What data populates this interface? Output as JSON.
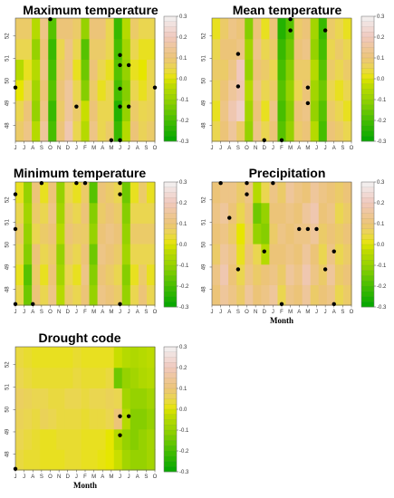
{
  "chart_data": [
    {
      "type": "heatmap",
      "title": "Maximum temperature",
      "xlabel": "",
      "x_ticks": [
        "J",
        "J",
        "A",
        "S",
        "O",
        "N",
        "D",
        "J",
        "F",
        "M",
        "A",
        "M",
        "J",
        "J",
        "A",
        "S",
        "O"
      ],
      "y_ticks": [
        "48",
        "49",
        "50",
        "51",
        "52"
      ],
      "ylim": [
        47.3,
        52.8
      ],
      "colorbar": {
        "ticks": [
          "0.3",
          "0.2",
          "0.1",
          "0.0",
          "-0.1",
          "-0.2",
          "-0.3"
        ],
        "range": [
          -0.3,
          0.3
        ]
      },
      "values": [
        [
          0.08,
          0.12,
          -0.05,
          0.15,
          -0.2,
          0.1,
          0.18,
          0.05,
          -0.05,
          0.12,
          0.05,
          0.08,
          -0.22,
          -0.05,
          0.1,
          0.06,
          0.08
        ],
        [
          0.05,
          0.1,
          -0.1,
          0.12,
          -0.22,
          0.08,
          0.15,
          0.08,
          -0.02,
          0.1,
          0.05,
          0.05,
          -0.25,
          -0.1,
          0.08,
          0.05,
          0.06
        ],
        [
          0.0,
          0.05,
          -0.08,
          0.1,
          -0.18,
          0.1,
          0.15,
          0.05,
          -0.12,
          0.08,
          0.02,
          0.05,
          -0.2,
          -0.12,
          0.05,
          0.02,
          0.05
        ],
        [
          -0.05,
          0.02,
          -0.05,
          0.12,
          -0.2,
          0.08,
          0.12,
          0.02,
          -0.15,
          0.1,
          0.05,
          0.02,
          -0.18,
          -0.1,
          0.02,
          0.0,
          0.05
        ],
        [
          0.05,
          0.05,
          -0.1,
          0.1,
          -0.22,
          0.05,
          0.12,
          0.05,
          -0.18,
          0.08,
          0.08,
          0.05,
          -0.2,
          -0.08,
          0.05,
          0.02,
          0.02
        ],
        [
          0.08,
          0.08,
          -0.05,
          0.12,
          -0.18,
          0.1,
          0.1,
          0.08,
          -0.1,
          0.1,
          0.1,
          0.05,
          -0.22,
          -0.05,
          0.08,
          0.05,
          0.05
        ]
      ],
      "points": [
        [
          4,
          52.75
        ],
        [
          12,
          51.15
        ],
        [
          12,
          50.7
        ],
        [
          13,
          50.7
        ],
        [
          0,
          49.7
        ],
        [
          12,
          49.65
        ],
        [
          16,
          49.7
        ],
        [
          7,
          48.85
        ],
        [
          12,
          48.85
        ],
        [
          13,
          48.85
        ],
        [
          11,
          47.35
        ],
        [
          12,
          47.35
        ]
      ]
    },
    {
      "type": "heatmap",
      "title": "Mean temperature",
      "xlabel": "",
      "x_ticks": [
        "J",
        "J",
        "A",
        "S",
        "O",
        "N",
        "D",
        "J",
        "F",
        "M",
        "A",
        "M",
        "J",
        "J",
        "A",
        "S",
        "O"
      ],
      "y_ticks": [
        "48",
        "49",
        "50",
        "51",
        "52"
      ],
      "ylim": [
        47.3,
        52.8
      ],
      "colorbar": {
        "ticks": [
          "0.3",
          "0.2",
          "0.1",
          "0.0",
          "-0.1",
          "-0.2",
          "-0.3"
        ],
        "range": [
          -0.3,
          0.3
        ]
      },
      "values": [
        [
          0.05,
          0.1,
          0.15,
          0.08,
          -0.1,
          0.12,
          0.05,
          0.1,
          -0.18,
          -0.1,
          0.08,
          0.1,
          -0.05,
          -0.2,
          0.1,
          0.08,
          0.05
        ],
        [
          0.02,
          0.12,
          0.18,
          0.22,
          -0.08,
          0.1,
          0.02,
          0.12,
          -0.2,
          -0.12,
          0.1,
          0.12,
          -0.1,
          -0.18,
          0.08,
          0.05,
          0.02
        ],
        [
          0.05,
          0.1,
          0.15,
          0.18,
          -0.05,
          0.12,
          0.05,
          0.08,
          -0.18,
          -0.1,
          0.05,
          0.1,
          -0.08,
          -0.15,
          0.05,
          0.02,
          0.05
        ],
        [
          0.08,
          0.08,
          0.12,
          0.2,
          -0.1,
          0.1,
          0.08,
          0.05,
          -0.2,
          -0.12,
          0.08,
          0.08,
          -0.05,
          -0.18,
          0.08,
          0.05,
          0.08
        ],
        [
          0.05,
          0.1,
          0.1,
          0.12,
          -0.08,
          0.12,
          0.05,
          0.08,
          -0.22,
          -0.15,
          0.1,
          0.12,
          -0.1,
          -0.2,
          0.05,
          0.08,
          0.05
        ],
        [
          0.02,
          0.08,
          0.12,
          0.1,
          -0.12,
          0.1,
          0.02,
          0.1,
          -0.25,
          -0.18,
          0.08,
          0.1,
          -0.08,
          -0.22,
          0.08,
          0.05,
          0.02
        ]
      ],
      "points": [
        [
          9,
          52.75
        ],
        [
          9,
          52.25
        ],
        [
          13,
          52.25
        ],
        [
          3,
          51.2
        ],
        [
          3,
          49.75
        ],
        [
          11,
          49.7
        ],
        [
          11,
          49.0
        ],
        [
          6,
          47.35
        ],
        [
          8,
          47.35
        ]
      ]
    },
    {
      "type": "heatmap",
      "title": "Minimum temperature",
      "xlabel": "",
      "x_ticks": [
        "J",
        "J",
        "A",
        "S",
        "O",
        "N",
        "D",
        "J",
        "F",
        "M",
        "A",
        "M",
        "J",
        "J",
        "A",
        "S",
        "O"
      ],
      "y_ticks": [
        "48",
        "49",
        "50",
        "51",
        "52"
      ],
      "ylim": [
        47.3,
        52.8
      ],
      "colorbar": {
        "ticks": [
          "0.3",
          "0.2",
          "0.1",
          "0.0",
          "-0.1",
          "-0.2",
          "-0.3"
        ],
        "range": [
          -0.3,
          0.3
        ]
      },
      "values": [
        [
          0.05,
          -0.15,
          0.1,
          0.05,
          0.12,
          -0.05,
          0.08,
          0.05,
          0.1,
          -0.1,
          0.12,
          0.1,
          0.08,
          -0.1,
          0.05,
          0.1,
          0.05
        ],
        [
          0.02,
          -0.18,
          0.08,
          0.02,
          0.1,
          -0.08,
          0.05,
          0.02,
          0.12,
          -0.12,
          0.1,
          0.08,
          0.05,
          -0.12,
          0.02,
          0.08,
          0.02
        ],
        [
          0.05,
          -0.12,
          0.1,
          0.05,
          0.08,
          -0.1,
          0.08,
          0.05,
          0.1,
          -0.15,
          0.12,
          0.1,
          0.08,
          -0.08,
          0.05,
          0.05,
          0.05
        ],
        [
          0.08,
          -0.1,
          0.05,
          0.08,
          0.1,
          -0.05,
          0.1,
          0.08,
          0.08,
          -0.1,
          0.1,
          0.12,
          0.1,
          -0.1,
          0.08,
          0.08,
          0.08
        ],
        [
          0.05,
          -0.08,
          0.08,
          0.05,
          0.12,
          -0.08,
          0.08,
          0.05,
          0.1,
          -0.12,
          0.08,
          0.1,
          0.08,
          -0.12,
          0.05,
          0.05,
          0.05
        ],
        [
          0.02,
          -0.1,
          0.1,
          0.02,
          0.1,
          -0.1,
          0.05,
          0.02,
          0.08,
          -0.18,
          0.1,
          0.08,
          0.05,
          -0.15,
          0.02,
          0.08,
          0.02
        ]
      ],
      "points": [
        [
          0,
          52.25
        ],
        [
          0,
          50.7
        ],
        [
          3,
          52.75
        ],
        [
          7,
          52.75
        ],
        [
          8,
          52.75
        ],
        [
          12,
          52.75
        ],
        [
          12,
          52.25
        ],
        [
          0,
          47.35
        ],
        [
          2,
          47.35
        ],
        [
          12,
          47.35
        ]
      ]
    },
    {
      "type": "heatmap",
      "title": "Precipitation",
      "xlabel": "Month",
      "x_ticks": [
        "J",
        "J",
        "A",
        "S",
        "O",
        "N",
        "D",
        "J",
        "F",
        "M",
        "A",
        "M",
        "J",
        "J",
        "A",
        "S",
        "O"
      ],
      "y_ticks": [
        "48",
        "49",
        "50",
        "51",
        "52"
      ],
      "ylim": [
        47.3,
        52.8
      ],
      "colorbar": {
        "ticks": [
          "0.3",
          "0.2",
          "0.1",
          "0.0",
          "-0.1",
          "-0.2",
          "-0.3"
        ],
        "range": [
          -0.3,
          0.3
        ]
      },
      "values": [
        [
          0.1,
          0.15,
          0.12,
          0.08,
          0.15,
          0.1,
          0.12,
          0.15,
          0.05,
          0.12,
          0.1,
          0.15,
          0.08,
          0.1,
          0.12,
          0.05,
          0.08
        ],
        [
          0.12,
          0.18,
          0.1,
          0.05,
          0.12,
          0.08,
          0.1,
          0.12,
          0.08,
          0.15,
          0.12,
          0.18,
          0.12,
          0.08,
          0.15,
          0.08,
          0.1
        ],
        [
          0.08,
          0.15,
          0.12,
          0.02,
          0.1,
          0.05,
          -0.05,
          0.1,
          0.1,
          0.12,
          0.1,
          0.15,
          0.1,
          0.05,
          0.12,
          0.05,
          0.08
        ],
        [
          0.1,
          0.12,
          0.08,
          0.0,
          0.08,
          -0.1,
          -0.12,
          0.08,
          0.12,
          0.1,
          0.12,
          0.12,
          0.15,
          0.08,
          0.1,
          0.08,
          0.1
        ],
        [
          0.12,
          0.15,
          0.1,
          0.05,
          0.1,
          -0.15,
          -0.1,
          0.1,
          0.1,
          0.12,
          0.1,
          0.15,
          0.18,
          0.1,
          0.12,
          0.05,
          0.08
        ],
        [
          0.1,
          0.12,
          0.12,
          0.08,
          0.12,
          -0.05,
          0.05,
          0.12,
          0.08,
          0.15,
          0.12,
          0.1,
          0.15,
          0.12,
          0.1,
          0.08,
          0.1
        ]
      ],
      "points": [
        [
          1,
          52.75
        ],
        [
          4,
          52.75
        ],
        [
          4,
          52.25
        ],
        [
          7,
          52.75
        ],
        [
          2,
          51.2
        ],
        [
          6,
          49.7
        ],
        [
          10,
          50.7
        ],
        [
          11,
          50.7
        ],
        [
          12,
          50.7
        ],
        [
          14,
          49.7
        ],
        [
          3,
          48.9
        ],
        [
          13,
          48.9
        ],
        [
          8,
          47.35
        ],
        [
          14,
          47.35
        ]
      ]
    },
    {
      "type": "heatmap",
      "title": "Drought code",
      "xlabel": "Month",
      "x_ticks": [
        "J",
        "J",
        "A",
        "S",
        "O",
        "N",
        "D",
        "J",
        "F",
        "M",
        "A",
        "M",
        "J",
        "J",
        "A",
        "S",
        "O"
      ],
      "y_ticks": [
        "48",
        "49",
        "50",
        "51",
        "52"
      ],
      "ylim": [
        47.3,
        52.8
      ],
      "colorbar": {
        "ticks": [
          "0.3",
          "0.2",
          "0.1",
          "0.0",
          "-0.1",
          "-0.2",
          "-0.3"
        ],
        "range": [
          -0.3,
          0.3
        ]
      },
      "values": [
        [
          0.04,
          0.03,
          0.03,
          0.02,
          0.02,
          0.02,
          0.03,
          0.03,
          0.02,
          0.02,
          0.01,
          0.0,
          -0.02,
          -0.08,
          -0.1,
          -0.1,
          -0.08
        ],
        [
          0.05,
          0.04,
          0.03,
          0.02,
          0.02,
          0.03,
          0.03,
          0.03,
          0.02,
          0.02,
          0.02,
          0.0,
          -0.05,
          -0.1,
          -0.12,
          -0.1,
          -0.08
        ],
        [
          0.06,
          0.05,
          0.04,
          0.06,
          0.05,
          0.04,
          0.04,
          0.04,
          0.03,
          0.04,
          0.04,
          0.05,
          0.1,
          -0.05,
          -0.12,
          -0.12,
          -0.1
        ],
        [
          0.07,
          0.06,
          0.05,
          0.05,
          0.04,
          0.04,
          0.05,
          0.05,
          0.04,
          0.05,
          0.05,
          0.06,
          0.05,
          -0.08,
          -0.1,
          -0.1,
          -0.08
        ],
        [
          0.05,
          0.04,
          0.03,
          0.03,
          0.03,
          0.03,
          0.03,
          0.04,
          0.03,
          0.03,
          0.03,
          0.04,
          -0.15,
          -0.1,
          -0.08,
          -0.06,
          -0.05
        ],
        [
          0.04,
          0.03,
          0.02,
          0.02,
          0.02,
          0.02,
          0.02,
          0.03,
          0.02,
          0.02,
          0.02,
          0.02,
          -0.02,
          -0.05,
          -0.06,
          -0.05,
          -0.04
        ]
      ],
      "points": [
        [
          12,
          49.7
        ],
        [
          13,
          49.7
        ],
        [
          12,
          48.85
        ],
        [
          0,
          47.35
        ]
      ]
    }
  ]
}
